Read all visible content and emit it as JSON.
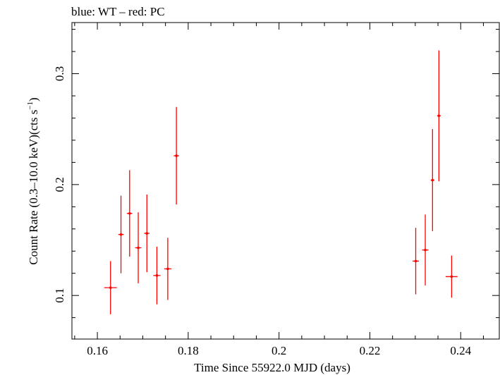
{
  "chart_data": {
    "type": "scatter",
    "title": "blue: WT – red: PC",
    "xlabel": "Time Since 55922.0 MJD (days)",
    "ylabel": "Count Rate (0.3–10.0 keV)(cts s",
    "ylabel_sup": "−1",
    "ylabel_end": ")",
    "xlim": [
      0.1544,
      0.2485
    ],
    "ylim": [
      0.0607,
      0.3461
    ],
    "xticks": [
      0.16,
      0.18,
      0.2,
      0.22,
      0.24
    ],
    "xtick_labels": [
      "0.16",
      "0.18",
      "0.2",
      "0.22",
      "0.24"
    ],
    "yticks": [
      0.1,
      0.2,
      0.3
    ],
    "ytick_labels": [
      "0.1",
      "0.2",
      "0.3"
    ],
    "grid": false,
    "series": [
      {
        "name": "PC",
        "color": "#ff0000",
        "points": [
          {
            "x": 0.1629,
            "xerr": 0.0014,
            "y": 0.107,
            "yerr": 0.024
          },
          {
            "x": 0.1652,
            "xerr": 0.0006,
            "y": 0.155,
            "yerr": 0.035
          },
          {
            "x": 0.1671,
            "xerr": 0.0006,
            "y": 0.174,
            "yerr": 0.039
          },
          {
            "x": 0.169,
            "xerr": 0.0007,
            "y": 0.143,
            "yerr": 0.032
          },
          {
            "x": 0.1709,
            "xerr": 0.0006,
            "y": 0.156,
            "yerr": 0.035
          },
          {
            "x": 0.1731,
            "xerr": 0.0008,
            "y": 0.118,
            "yerr": 0.026
          },
          {
            "x": 0.1755,
            "xerr": 0.0008,
            "y": 0.124,
            "yerr": 0.028
          },
          {
            "x": 0.1774,
            "xerr": 0.0006,
            "y": 0.226,
            "yerr": 0.044
          },
          {
            "x": 0.2301,
            "xerr": 0.0007,
            "y": 0.131,
            "yerr": 0.03
          },
          {
            "x": 0.2322,
            "xerr": 0.0007,
            "y": 0.141,
            "yerr": 0.032
          },
          {
            "x": 0.2338,
            "xerr": 0.0004,
            "y": 0.204,
            "yerr": 0.046
          },
          {
            "x": 0.2352,
            "xerr": 0.0004,
            "y": 0.262,
            "yerr": 0.059
          },
          {
            "x": 0.238,
            "xerr": 0.0013,
            "y": 0.117,
            "yerr": 0.019
          }
        ]
      }
    ]
  }
}
